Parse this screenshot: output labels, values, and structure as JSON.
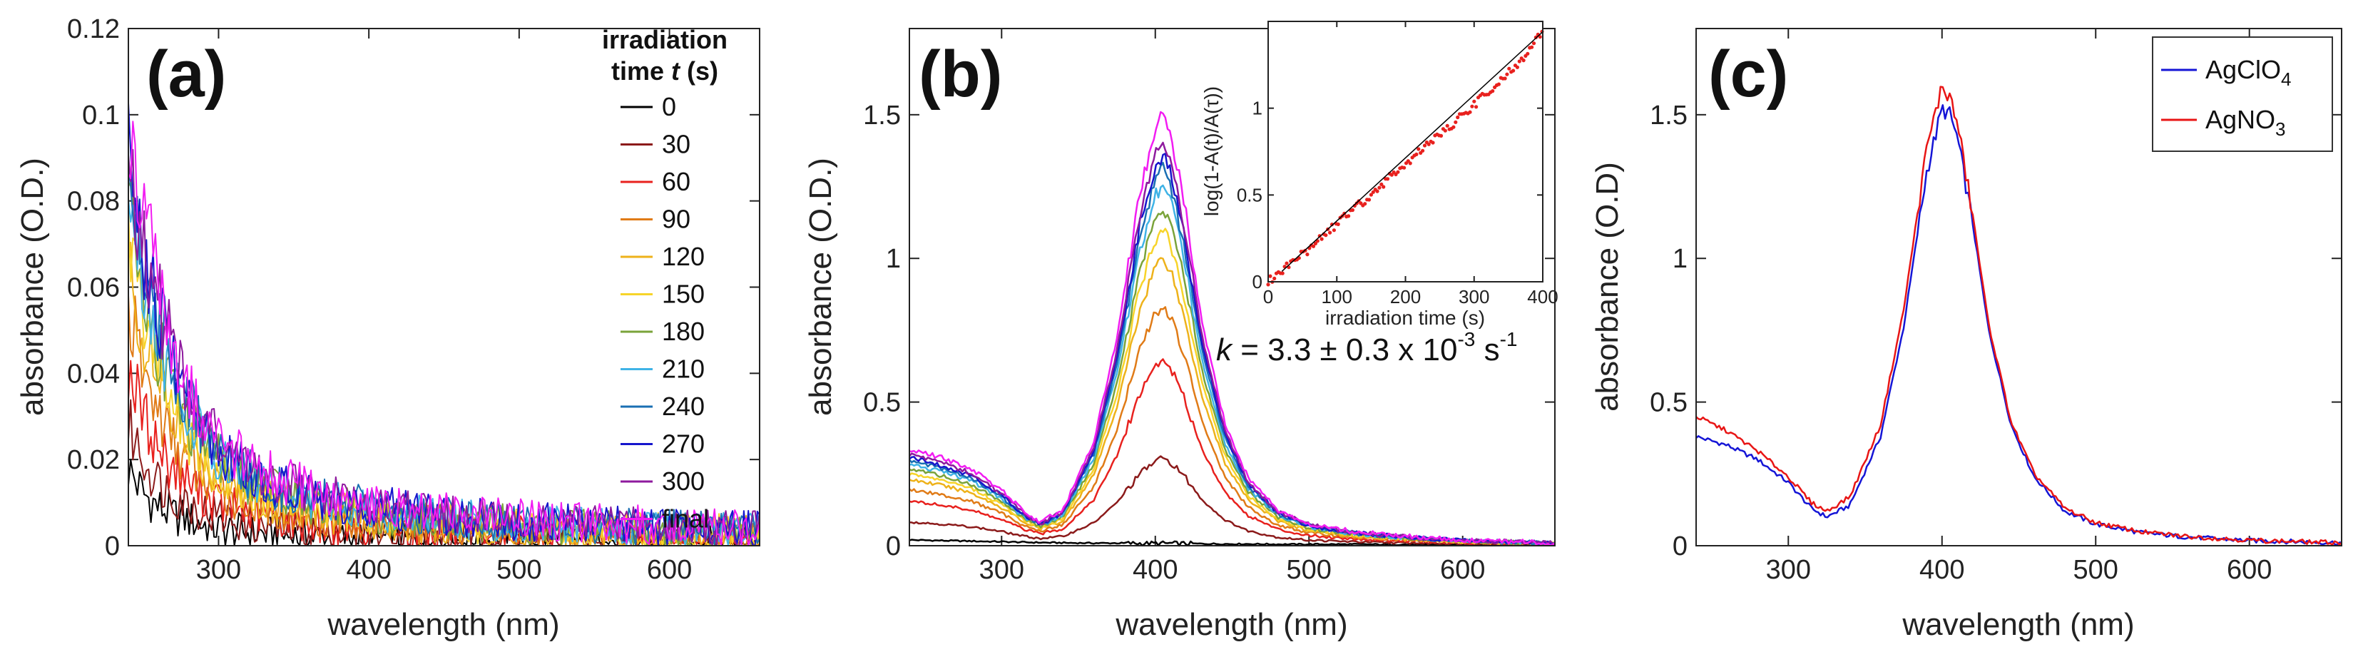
{
  "chart_data": [
    {
      "id": "a",
      "type": "line",
      "panel_label": "(a)",
      "xlabel": "wavelength (nm)",
      "ylabel": "absorbance (O.D.)",
      "xlim": [
        240,
        660
      ],
      "ylim": [
        0,
        0.12
      ],
      "xticks": [
        300,
        400,
        500,
        600
      ],
      "xtick_labels": [
        "300",
        "400",
        "500",
        "600"
      ],
      "yticks": [
        0,
        0.02,
        0.04,
        0.06,
        0.08,
        0.1,
        0.12
      ],
      "ytick_labels": [
        "0",
        "0.02",
        "0.04",
        "0.06",
        "0.08",
        "0.1",
        "0.12"
      ],
      "legend_title_line1": "irradiation",
      "legend_title_prefix": "time ",
      "legend_title_var": "t",
      "legend_title_suffix": " (s)",
      "legend_position": "top-right",
      "x": [
        240,
        250,
        260,
        270,
        280,
        290,
        300,
        320,
        340,
        360,
        380,
        400,
        450,
        500,
        550,
        600,
        660
      ],
      "series": [
        {
          "name": "0",
          "color": "#000000",
          "values": [
            0.018,
            0.012,
            0.009,
            0.007,
            0.006,
            0.005,
            0.004,
            0.003,
            0.0025,
            0.002,
            0.0018,
            0.0015,
            0.0012,
            0.001,
            0.0009,
            0.0008,
            0.0007
          ]
        },
        {
          "name": "30",
          "color": "#8b1a1a",
          "values": [
            0.028,
            0.02,
            0.015,
            0.012,
            0.01,
            0.008,
            0.007,
            0.005,
            0.0042,
            0.0036,
            0.003,
            0.0026,
            0.002,
            0.0016,
            0.0014,
            0.0012,
            0.001
          ]
        },
        {
          "name": "60",
          "color": "#e8211e",
          "values": [
            0.042,
            0.03,
            0.023,
            0.018,
            0.015,
            0.012,
            0.01,
            0.0078,
            0.0064,
            0.0054,
            0.0047,
            0.0041,
            0.0032,
            0.0026,
            0.0022,
            0.0019,
            0.0016
          ]
        },
        {
          "name": "90",
          "color": "#e07b17",
          "values": [
            0.055,
            0.04,
            0.031,
            0.024,
            0.019,
            0.016,
            0.013,
            0.01,
            0.0083,
            0.007,
            0.006,
            0.0053,
            0.0041,
            0.0034,
            0.0029,
            0.0025,
            0.0021
          ]
        },
        {
          "name": "120",
          "color": "#eeb21a",
          "values": [
            0.065,
            0.048,
            0.037,
            0.029,
            0.023,
            0.019,
            0.016,
            0.012,
            0.0099,
            0.0084,
            0.0072,
            0.0063,
            0.0049,
            0.004,
            0.0034,
            0.003,
            0.0026
          ]
        },
        {
          "name": "150",
          "color": "#f7d42a",
          "values": [
            0.072,
            0.054,
            0.042,
            0.033,
            0.026,
            0.021,
            0.018,
            0.0135,
            0.011,
            0.0094,
            0.0081,
            0.0071,
            0.0055,
            0.0045,
            0.0038,
            0.0033,
            0.0029
          ]
        },
        {
          "name": "180",
          "color": "#7aa33a",
          "values": [
            0.078,
            0.059,
            0.046,
            0.036,
            0.029,
            0.023,
            0.02,
            0.0148,
            0.0121,
            0.0103,
            0.0089,
            0.0077,
            0.006,
            0.0049,
            0.0042,
            0.0036,
            0.0031
          ]
        },
        {
          "name": "210",
          "color": "#3fb3e6",
          "values": [
            0.083,
            0.063,
            0.049,
            0.039,
            0.031,
            0.025,
            0.021,
            0.0158,
            0.013,
            0.011,
            0.0095,
            0.0083,
            0.0064,
            0.0052,
            0.0045,
            0.0039,
            0.0034
          ]
        },
        {
          "name": "240",
          "color": "#1a6fb3",
          "values": [
            0.087,
            0.066,
            0.052,
            0.041,
            0.033,
            0.026,
            0.022,
            0.0166,
            0.0136,
            0.0116,
            0.01,
            0.0087,
            0.0067,
            0.0055,
            0.0047,
            0.0041,
            0.0035
          ]
        },
        {
          "name": "270",
          "color": "#1616cc",
          "values": [
            0.09,
            0.069,
            0.054,
            0.043,
            0.034,
            0.027,
            0.023,
            0.0173,
            0.0142,
            0.0121,
            0.0104,
            0.0091,
            0.007,
            0.0057,
            0.0049,
            0.0043,
            0.0037
          ]
        },
        {
          "name": "300",
          "color": "#8e1a9e",
          "values": [
            0.093,
            0.071,
            0.056,
            0.044,
            0.035,
            0.028,
            0.024,
            0.0178,
            0.0146,
            0.0124,
            0.0107,
            0.0094,
            0.0072,
            0.0059,
            0.0051,
            0.0044,
            0.0038
          ]
        },
        {
          "name": "final",
          "color": "#f21cf2",
          "values": [
            0.1,
            0.076,
            0.06,
            0.047,
            0.037,
            0.03,
            0.025,
            0.0188,
            0.0154,
            0.0131,
            0.0113,
            0.0099,
            0.0076,
            0.0062,
            0.0053,
            0.0046,
            0.004
          ]
        }
      ]
    },
    {
      "id": "b",
      "type": "line",
      "panel_label": "(b)",
      "xlabel": "wavelength (nm)",
      "ylabel": "absorbance (O.D.)",
      "xlim": [
        240,
        660
      ],
      "ylim": [
        0,
        1.8
      ],
      "xticks": [
        300,
        400,
        500,
        600
      ],
      "xtick_labels": [
        "300",
        "400",
        "500",
        "600"
      ],
      "yticks": [
        0,
        0.5,
        1,
        1.5
      ],
      "ytick_labels": [
        "0",
        "0.5",
        "1",
        "1.5"
      ],
      "x": [
        240,
        260,
        280,
        300,
        315,
        325,
        340,
        360,
        375,
        390,
        400,
        405,
        410,
        420,
        430,
        445,
        460,
        480,
        500,
        530,
        560,
        600,
        660
      ],
      "peak_fractions": [
        0.0,
        0.19,
        0.41,
        0.53,
        0.64,
        0.7,
        0.75,
        0.8,
        0.84,
        0.87,
        0.9,
        0.96
      ],
      "series_names": [
        "0",
        "30",
        "60",
        "90",
        "120",
        "150",
        "180",
        "210",
        "240",
        "270",
        "300",
        "final"
      ],
      "series_colors": [
        "#000000",
        "#8b1a1a",
        "#e8211e",
        "#e07b17",
        "#eeb21a",
        "#f7d42a",
        "#7aa33a",
        "#3fb3e6",
        "#1a6fb3",
        "#1616cc",
        "#8e1a9e",
        "#f21cf2"
      ],
      "final_curve": [
        0.35,
        0.32,
        0.28,
        0.2,
        0.12,
        0.085,
        0.13,
        0.38,
        0.75,
        1.28,
        1.52,
        1.56,
        1.5,
        1.2,
        0.82,
        0.45,
        0.25,
        0.13,
        0.08,
        0.05,
        0.035,
        0.02,
        0.01
      ],
      "baseline_curve": [
        0.02,
        0.018,
        0.016,
        0.014,
        0.012,
        0.011,
        0.01,
        0.009,
        0.009,
        0.008,
        0.008,
        0.008,
        0.008,
        0.007,
        0.007,
        0.006,
        0.006,
        0.005,
        0.005,
        0.005,
        0.004,
        0.004,
        0.004
      ],
      "annotation_prefix": "k",
      "annotation_mid": " = 3.3 ± 0.3 x 10",
      "annotation_exp1": "-3",
      "annotation_unit": " s",
      "annotation_exp2": "-1",
      "inset": {
        "type": "scatter",
        "xlabel": "irradiation time (s)",
        "ylabel": "log(1-A(t)/A(τ))",
        "xlim": [
          0,
          400
        ],
        "ylim": [
          0,
          1.5
        ],
        "xticks": [
          0,
          100,
          200,
          300,
          400
        ],
        "xtick_labels": [
          "0",
          "100",
          "200",
          "300",
          "400"
        ],
        "yticks": [
          0,
          0.5,
          1
        ],
        "ytick_labels": [
          "0",
          "0.5",
          "1"
        ],
        "x": [
          0,
          20,
          40,
          60,
          80,
          100,
          120,
          140,
          160,
          180,
          200,
          220,
          240,
          260,
          280,
          300,
          320,
          340,
          360,
          380,
          400
        ],
        "y": [
          0.0,
          0.06,
          0.13,
          0.19,
          0.26,
          0.33,
          0.4,
          0.47,
          0.54,
          0.61,
          0.68,
          0.75,
          0.82,
          0.88,
          0.95,
          1.02,
          1.09,
          1.16,
          1.24,
          1.33,
          1.44
        ],
        "fit": {
          "x": [
            20,
            400
          ],
          "y": [
            0.06,
            1.44
          ]
        },
        "point_color": "#e8211e",
        "fit_color": "#000000"
      }
    },
    {
      "id": "c",
      "type": "line",
      "panel_label": "(c)",
      "xlabel": "wavelength (nm)",
      "ylabel": "absorbance (O.D)",
      "xlim": [
        240,
        660
      ],
      "ylim": [
        0,
        1.8
      ],
      "xticks": [
        300,
        400,
        500,
        600
      ],
      "xtick_labels": [
        "300",
        "400",
        "500",
        "600"
      ],
      "yticks": [
        0,
        0.5,
        1,
        1.5
      ],
      "ytick_labels": [
        "0",
        "0.5",
        "1",
        "1.5"
      ],
      "legend_position": "top-right",
      "x": [
        240,
        260,
        280,
        300,
        315,
        325,
        340,
        360,
        375,
        390,
        400,
        405,
        410,
        420,
        430,
        445,
        460,
        480,
        500,
        530,
        560,
        600,
        660
      ],
      "series": [
        {
          "name": "AgClO",
          "sub": "4",
          "color": "#1515d6",
          "values": [
            0.38,
            0.35,
            0.3,
            0.22,
            0.13,
            0.1,
            0.14,
            0.38,
            0.76,
            1.3,
            1.52,
            1.5,
            1.42,
            1.12,
            0.76,
            0.42,
            0.24,
            0.12,
            0.075,
            0.045,
            0.03,
            0.018,
            0.01
          ]
        },
        {
          "name": "AgNO",
          "sub": "3",
          "color": "#e81515",
          "values": [
            0.45,
            0.4,
            0.33,
            0.24,
            0.15,
            0.12,
            0.17,
            0.42,
            0.82,
            1.38,
            1.6,
            1.56,
            1.47,
            1.15,
            0.78,
            0.43,
            0.25,
            0.13,
            0.08,
            0.048,
            0.032,
            0.019,
            0.01
          ]
        }
      ]
    }
  ]
}
